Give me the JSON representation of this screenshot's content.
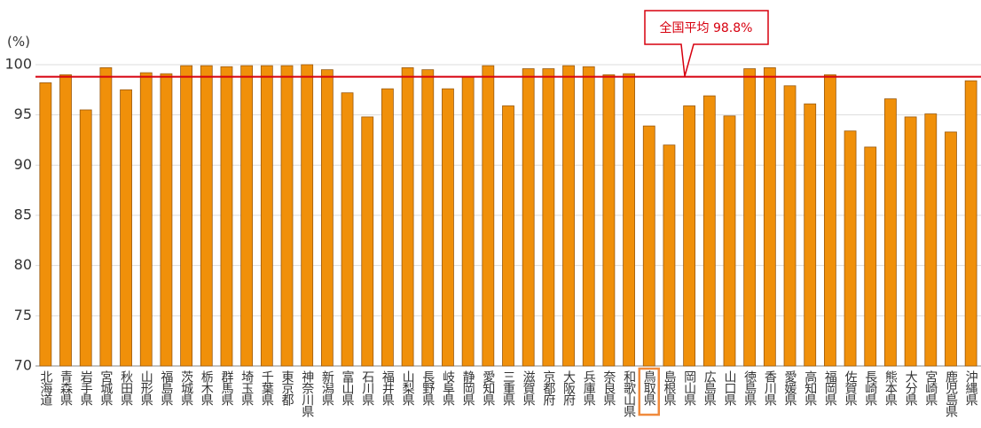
{
  "chart_data": {
    "type": "bar",
    "unit_label": "(%)",
    "categories": [
      "北海道",
      "青森県",
      "岩手県",
      "宮城県",
      "秋田県",
      "山形県",
      "福島県",
      "茨城県",
      "栃木県",
      "群馬県",
      "埼玉県",
      "千葉県",
      "東京都",
      "神奈川県",
      "新潟県",
      "富山県",
      "石川県",
      "福井県",
      "山梨県",
      "長野県",
      "岐阜県",
      "静岡県",
      "愛知県",
      "三重県",
      "滋賀県",
      "京都府",
      "大阪府",
      "兵庫県",
      "奈良県",
      "和歌山県",
      "鳥取県",
      "島根県",
      "岡山県",
      "広島県",
      "山口県",
      "徳島県",
      "香川県",
      "愛媛県",
      "高知県",
      "福岡県",
      "佐賀県",
      "長崎県",
      "熊本県",
      "大分県",
      "宮崎県",
      "鹿児島県",
      "沖縄県"
    ],
    "values": [
      98.2,
      99.0,
      95.5,
      99.7,
      97.5,
      99.2,
      99.1,
      99.9,
      99.9,
      99.8,
      99.9,
      99.9,
      99.9,
      100.0,
      99.5,
      97.2,
      94.8,
      97.6,
      99.7,
      99.5,
      97.6,
      98.8,
      99.9,
      95.9,
      99.6,
      99.6,
      99.9,
      99.8,
      99.0,
      99.1,
      93.9,
      92.0,
      95.9,
      96.9,
      94.9,
      99.6,
      99.7,
      97.9,
      96.1,
      99.0,
      93.4,
      91.8,
      96.6,
      94.8,
      95.1,
      93.3,
      98.4
    ],
    "color": "#f0900a",
    "ylim": [
      70,
      100
    ],
    "yticks": [
      70,
      75,
      80,
      85,
      90,
      95,
      100
    ],
    "average": {
      "label": "全国平均 98.8%",
      "value": 98.8,
      "color": "#d7000f"
    },
    "highlight_index": 30,
    "highlight_color": "#f08a3c"
  }
}
